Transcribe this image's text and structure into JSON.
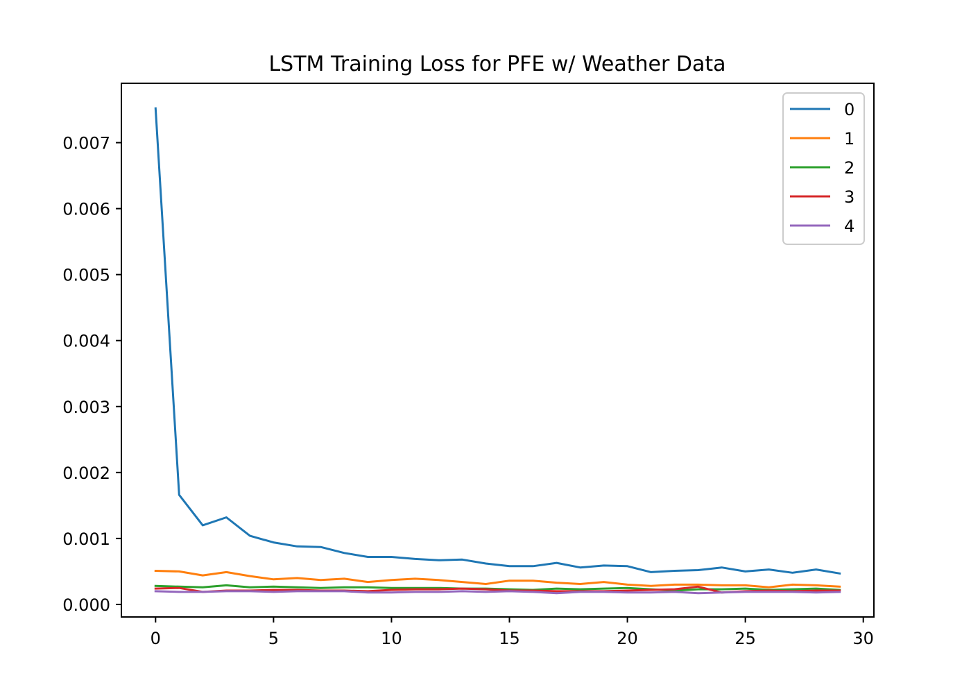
{
  "chart_data": {
    "type": "line",
    "title": "LSTM Training Loss for PFE w/ Weather Data",
    "xlabel": "",
    "ylabel": "",
    "xlim": [
      -1.45,
      30.45
    ],
    "ylim": [
      -0.00019,
      0.0079
    ],
    "xticks": [
      0,
      5,
      10,
      15,
      20,
      25,
      30
    ],
    "xtick_labels": [
      "0",
      "5",
      "10",
      "15",
      "20",
      "25",
      "30"
    ],
    "yticks": [
      0.0,
      0.001,
      0.002,
      0.003,
      0.004,
      0.005,
      0.006,
      0.007
    ],
    "ytick_labels": [
      "0.000",
      "0.001",
      "0.002",
      "0.003",
      "0.004",
      "0.005",
      "0.006",
      "0.007"
    ],
    "grid": false,
    "legend_position": "top-right",
    "x": [
      0,
      1,
      2,
      3,
      4,
      5,
      6,
      7,
      8,
      9,
      10,
      11,
      12,
      13,
      14,
      15,
      16,
      17,
      18,
      19,
      20,
      21,
      22,
      23,
      24,
      25,
      26,
      27,
      28,
      29
    ],
    "series": [
      {
        "name": "0",
        "color": "#1f77b4",
        "values": [
          0.00752,
          0.00166,
          0.0012,
          0.00132,
          0.00104,
          0.00094,
          0.00088,
          0.00087,
          0.00078,
          0.00072,
          0.00072,
          0.00069,
          0.00067,
          0.00068,
          0.00062,
          0.00058,
          0.00058,
          0.00063,
          0.00056,
          0.00059,
          0.00058,
          0.00049,
          0.00051,
          0.00052,
          0.00056,
          0.0005,
          0.00053,
          0.00048,
          0.00053,
          0.00047
        ]
      },
      {
        "name": "1",
        "color": "#ff7f0e",
        "values": [
          0.00051,
          0.0005,
          0.00044,
          0.00049,
          0.00043,
          0.00038,
          0.0004,
          0.00037,
          0.00039,
          0.00034,
          0.00037,
          0.00039,
          0.00037,
          0.00034,
          0.00031,
          0.00036,
          0.00036,
          0.00033,
          0.00031,
          0.00034,
          0.0003,
          0.00028,
          0.0003,
          0.0003,
          0.00029,
          0.00029,
          0.00026,
          0.0003,
          0.00029,
          0.00027
        ]
      },
      {
        "name": "2",
        "color": "#2ca02c",
        "values": [
          0.00028,
          0.00027,
          0.00026,
          0.00029,
          0.00026,
          0.00027,
          0.00026,
          0.00025,
          0.00026,
          0.00026,
          0.00025,
          0.00025,
          0.00025,
          0.00024,
          0.00024,
          0.00023,
          0.00022,
          0.00024,
          0.00023,
          0.00024,
          0.00025,
          0.00023,
          0.00021,
          0.00023,
          0.00023,
          0.00024,
          0.00022,
          0.00023,
          0.00024,
          0.00022
        ]
      },
      {
        "name": "3",
        "color": "#d62728",
        "values": [
          0.00024,
          0.00025,
          0.00019,
          0.00021,
          0.00021,
          0.00022,
          0.00022,
          0.00021,
          0.00021,
          0.0002,
          0.00022,
          0.00023,
          0.00023,
          0.00024,
          0.00023,
          0.00021,
          0.00021,
          0.0002,
          0.0002,
          0.0002,
          0.00021,
          0.00022,
          0.00023,
          0.00027,
          0.00018,
          0.0002,
          0.00021,
          0.0002,
          0.00021,
          0.00021
        ]
      },
      {
        "name": "4",
        "color": "#9467bd",
        "values": [
          0.0002,
          0.00019,
          0.00019,
          0.0002,
          0.0002,
          0.00019,
          0.0002,
          0.0002,
          0.0002,
          0.00018,
          0.00018,
          0.00019,
          0.00019,
          0.0002,
          0.00019,
          0.0002,
          0.00019,
          0.00017,
          0.00019,
          0.00019,
          0.00018,
          0.00018,
          0.00019,
          0.00017,
          0.00018,
          0.00019,
          0.00019,
          0.00019,
          0.00018,
          0.00019
        ]
      }
    ]
  }
}
